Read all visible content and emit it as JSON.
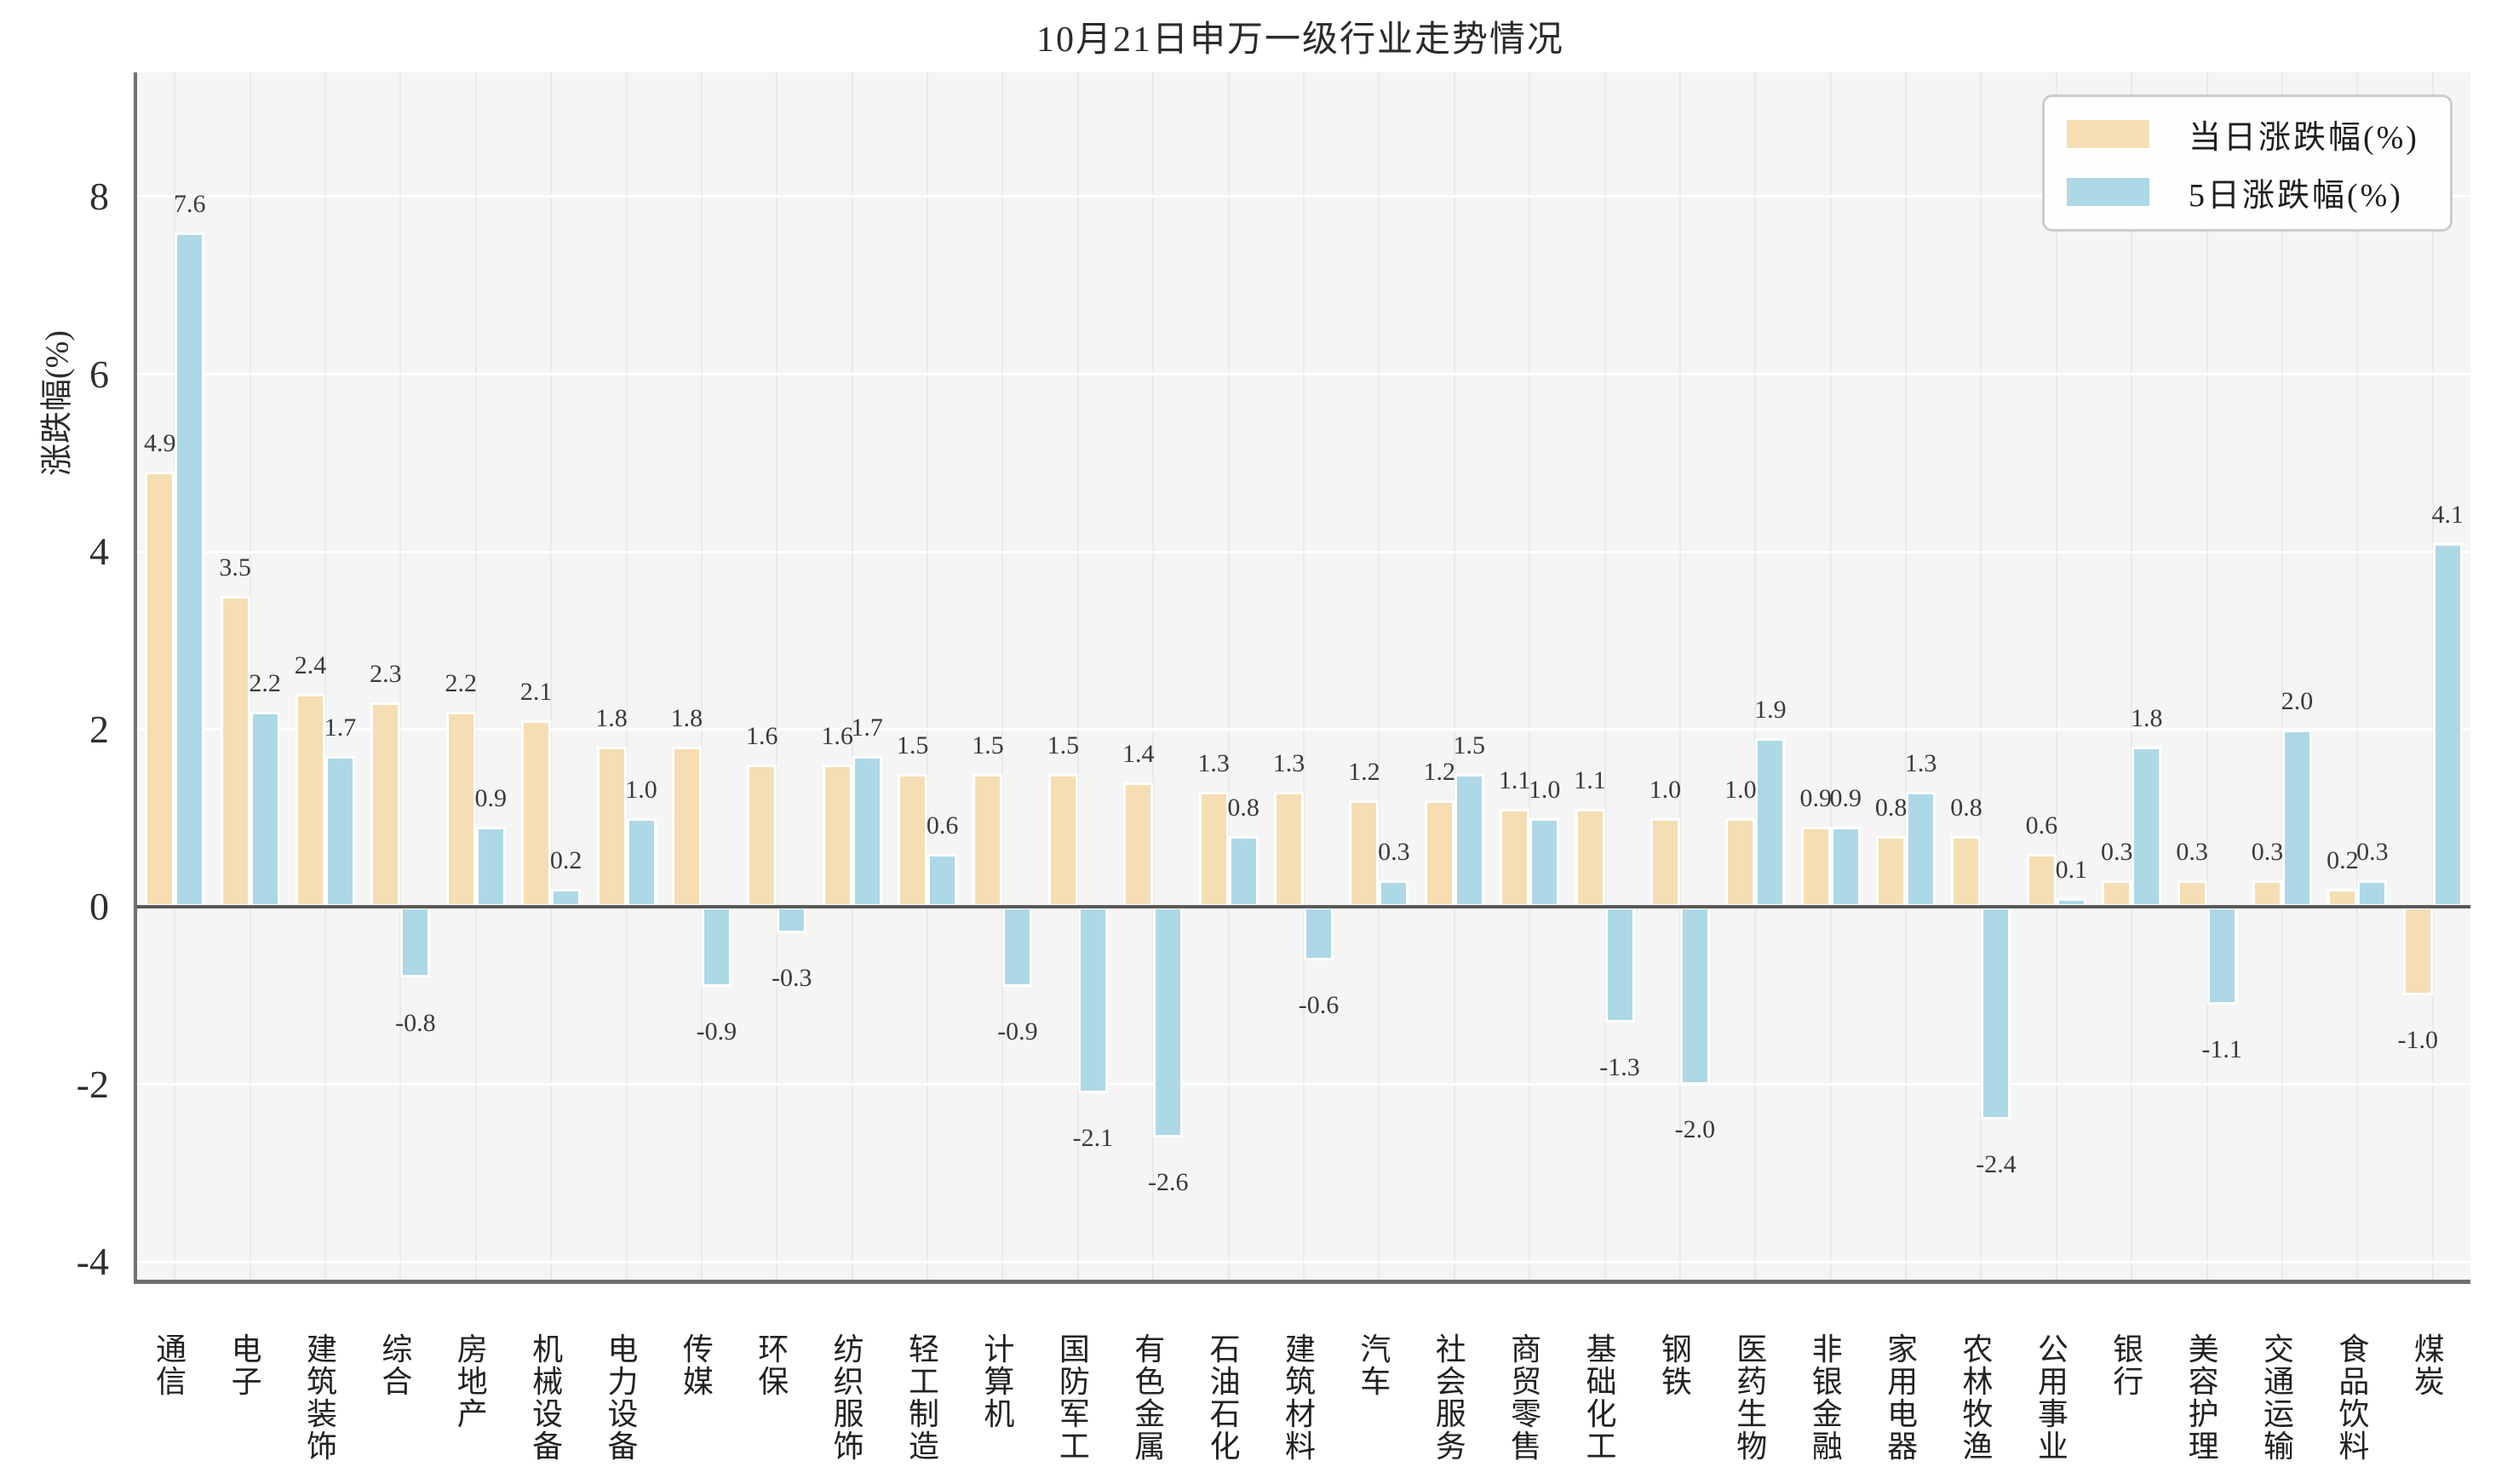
{
  "chart_data": {
    "type": "bar",
    "title": "10月21日申万一级行业走势情况",
    "xlabel": "",
    "ylabel": "涨跌幅(%)",
    "categories": [
      "通信",
      "电子",
      "建筑装饰",
      "综合",
      "房地产",
      "机械设备",
      "电力设备",
      "传媒",
      "环保",
      "纺织服饰",
      "轻工制造",
      "计算机",
      "国防军工",
      "有色金属",
      "石油石化",
      "建筑材料",
      "汽车",
      "社会服务",
      "商贸零售",
      "基础化工",
      "钢铁",
      "医药生物",
      "非银金融",
      "家用电器",
      "农林牧渔",
      "公用事业",
      "银行",
      "美容护理",
      "交通运输",
      "食品饮料",
      "煤炭"
    ],
    "series": [
      {
        "name": "当日涨跌幅(%)",
        "color": "#F5DEB3",
        "values": [
          4.9,
          3.5,
          2.4,
          2.3,
          2.2,
          2.1,
          1.8,
          1.8,
          1.6,
          1.6,
          1.5,
          1.5,
          1.5,
          1.4,
          1.3,
          1.3,
          1.2,
          1.2,
          1.1,
          1.1,
          1.0,
          1.0,
          0.9,
          0.8,
          0.8,
          0.6,
          0.3,
          0.3,
          0.3,
          0.2,
          -1.0
        ]
      },
      {
        "name": "5日涨跌幅(%)",
        "color": "#ADD8E6",
        "values": [
          7.6,
          2.2,
          1.7,
          -0.8,
          0.9,
          0.2,
          1.0,
          -0.9,
          -0.3,
          1.7,
          0.6,
          -0.9,
          -2.1,
          -2.6,
          0.8,
          -0.6,
          0.3,
          1.5,
          1.0,
          -1.3,
          -2.0,
          1.9,
          0.9,
          1.3,
          -2.4,
          0.1,
          1.8,
          -1.1,
          2.0,
          0.3,
          4.1
        ]
      }
    ],
    "yticks": [
      8,
      6,
      4,
      2,
      0,
      -2,
      -4
    ],
    "ylim": [
      -4.2,
      9.4
    ],
    "grid": true,
    "legend_position": "upper right",
    "value_labels": true,
    "label_format": "one_decimal"
  }
}
